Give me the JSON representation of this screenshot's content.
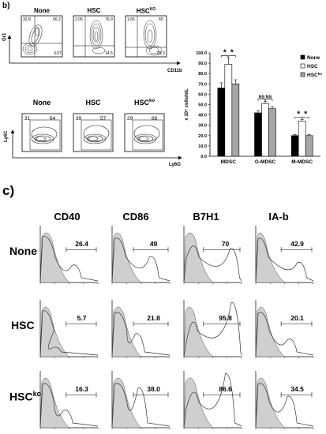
{
  "panel_b": {
    "label": "b)",
    "gr1_plots": [
      {
        "title": "None",
        "quad": [
          "32.8",
          "56.2",
          "3.07"
        ]
      },
      {
        "title": "HSC",
        "quad": [
          "2.05",
          "76.9",
          "14.5"
        ]
      },
      {
        "title": "HSCKO",
        "quad": [
          "1.65",
          "65",
          "28.3"
        ]
      }
    ],
    "gr1_y_axis": "Gr1",
    "gr1_x_axis": "CD11b",
    "ly6_plots": [
      {
        "title": "None",
        "quad": [
          "31",
          "64"
        ]
      },
      {
        "title": "HSC",
        "quad": [
          "39",
          "57"
        ]
      },
      {
        "title": "HSCko",
        "quad": [
          "29",
          "66"
        ]
      }
    ],
    "ly6_y_axis": "Ly6C",
    "ly6_x_axis": "Ly6G"
  },
  "chart_data": {
    "type": "bar",
    "categories": [
      "MDSC",
      "G-MDSC",
      "M-MDSC"
    ],
    "series": [
      {
        "name": "None",
        "color": "#000000",
        "values": [
          66,
          42,
          20
        ],
        "errors": [
          5,
          2,
          1
        ]
      },
      {
        "name": "HSC",
        "color": "#ffffff",
        "values": [
          89,
          51,
          34
        ],
        "errors": [
          6,
          2,
          1.5
        ]
      },
      {
        "name": "HSCko",
        "color": "#a6a6a6",
        "values": [
          70,
          46,
          20
        ],
        "errors": [
          4,
          2,
          1
        ]
      }
    ],
    "ylabel": "x 10⁴ cells/mL",
    "ylim": [
      0,
      100
    ],
    "yticks": [
      "0.0",
      "10.0",
      "20.0",
      "30.0",
      "40.0",
      "50.0",
      "60.0",
      "70.0",
      "80.0",
      "90.0",
      "100.0"
    ],
    "significance": [
      {
        "category": "MDSC",
        "marks": [
          "*",
          "*"
        ]
      },
      {
        "category": "G-MDSC",
        "marks": [
          "NS",
          "NS"
        ]
      },
      {
        "category": "M-MDSC",
        "marks": [
          "*",
          "*"
        ]
      }
    ],
    "legend_position": "top-right"
  },
  "panel_c": {
    "label": "c)",
    "columns": [
      "CD40",
      "CD86",
      "B7H1",
      "IA-b"
    ],
    "rows": [
      {
        "label": "None",
        "values": [
          "26.4",
          "49",
          "70",
          "42.9"
        ]
      },
      {
        "label": "HSC",
        "values": [
          "5.7",
          "21.8",
          "95.8",
          "20.1"
        ]
      },
      {
        "label": "HSCko",
        "values": [
          "16.3",
          "38.0",
          "86.6",
          "34.5"
        ]
      }
    ]
  }
}
